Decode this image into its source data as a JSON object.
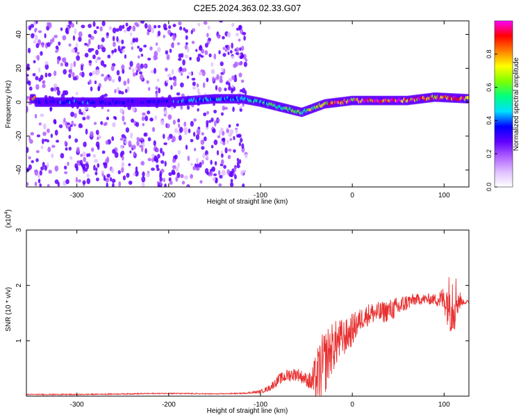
{
  "title": "C2E5.2024.363.02.33.G07",
  "chart_data": [
    {
      "type": "heatmap",
      "xlabel": "Height of straight line (km)",
      "ylabel": "Frequency (Hz)",
      "xlim": [
        -355,
        127
      ],
      "ylim": [
        -50,
        48
      ],
      "xticks": [
        -300,
        -200,
        -100,
        0,
        100
      ],
      "yticks": [
        -40,
        -20,
        0,
        20,
        40
      ],
      "colorbar": {
        "label": "Normalized spectral amplitude",
        "range": [
          0,
          1
        ],
        "ticks": [
          "0.0",
          "0.2",
          "0.4",
          "0.6",
          "0.8"
        ],
        "colors": [
          "#ffffff",
          "#e0c0ff",
          "#b060ff",
          "#6000ff",
          "#0000ff",
          "#00e0ff",
          "#00ff80",
          "#80ff00",
          "#ffff00",
          "#ff8000",
          "#ff0000",
          "#ff00ff"
        ]
      },
      "ridge": [
        {
          "x": -345,
          "y": 0,
          "amp": 0.3
        },
        {
          "x": -300,
          "y": 0,
          "amp": 0.35
        },
        {
          "x": -250,
          "y": 0,
          "amp": 0.3
        },
        {
          "x": -200,
          "y": 0,
          "amp": 0.35
        },
        {
          "x": -150,
          "y": 2,
          "amp": 0.45
        },
        {
          "x": -120,
          "y": 2,
          "amp": 0.4
        },
        {
          "x": -100,
          "y": 0,
          "amp": 0.5
        },
        {
          "x": -85,
          "y": -2,
          "amp": 0.55
        },
        {
          "x": -70,
          "y": -4,
          "amp": 0.55
        },
        {
          "x": -55,
          "y": -6,
          "amp": 0.55
        },
        {
          "x": -45,
          "y": -4,
          "amp": 0.6
        },
        {
          "x": -30,
          "y": -1,
          "amp": 0.7
        },
        {
          "x": -15,
          "y": 0,
          "amp": 0.85
        },
        {
          "x": 0,
          "y": 1,
          "amp": 0.85
        },
        {
          "x": 20,
          "y": 1,
          "amp": 0.9
        },
        {
          "x": 60,
          "y": 1,
          "amp": 0.9
        },
        {
          "x": 90,
          "y": 3,
          "amp": 0.8
        },
        {
          "x": 127,
          "y": 2,
          "amp": 0.85
        }
      ],
      "noise_band": {
        "x_from": -355,
        "x_to": -115,
        "amp": 0.25
      }
    },
    {
      "type": "line",
      "xlabel": "Height of straight line (km)",
      "ylabel": "SNR (10 * v/v)",
      "exponent_label": "(x10",
      "exponent_value": "4",
      "exponent_close": ")",
      "xlim": [
        -355,
        127
      ],
      "ylim": [
        0,
        3
      ],
      "xticks": [
        -300,
        -200,
        -100,
        0,
        100
      ],
      "yticks": [
        1,
        2,
        3
      ],
      "line_color": "#e83030",
      "series": [
        {
          "x": [
            -355,
            -300,
            -250,
            -200,
            -150,
            -120,
            -100,
            -90,
            -80,
            -70,
            -60,
            -50,
            -45,
            -40,
            -35,
            -30,
            -25,
            -20,
            -15,
            -10,
            -5,
            0,
            10,
            20,
            30,
            40,
            50,
            60,
            70,
            80,
            90,
            100,
            105,
            110,
            115,
            120,
            127
          ],
          "y": [
            0.03,
            0.03,
            0.04,
            0.05,
            0.04,
            0.05,
            0.08,
            0.15,
            0.3,
            0.38,
            0.4,
            0.3,
            0.25,
            0.3,
            0.45,
            0.6,
            0.8,
            0.9,
            1.0,
            1.05,
            1.1,
            1.2,
            1.4,
            1.5,
            1.5,
            1.55,
            1.6,
            1.7,
            1.75,
            1.75,
            1.75,
            1.75,
            1.7,
            1.75,
            1.75,
            1.7,
            1.7
          ],
          "noise": [
            0.01,
            0.01,
            0.01,
            0.01,
            0.01,
            0.01,
            0.03,
            0.06,
            0.1,
            0.12,
            0.12,
            0.12,
            0.2,
            0.45,
            0.6,
            0.6,
            0.5,
            0.45,
            0.4,
            0.35,
            0.3,
            0.3,
            0.2,
            0.2,
            0.2,
            0.2,
            0.2,
            0.15,
            0.1,
            0.1,
            0.1,
            0.25,
            0.5,
            0.7,
            0.3,
            0.05,
            0.03
          ]
        }
      ]
    }
  ]
}
